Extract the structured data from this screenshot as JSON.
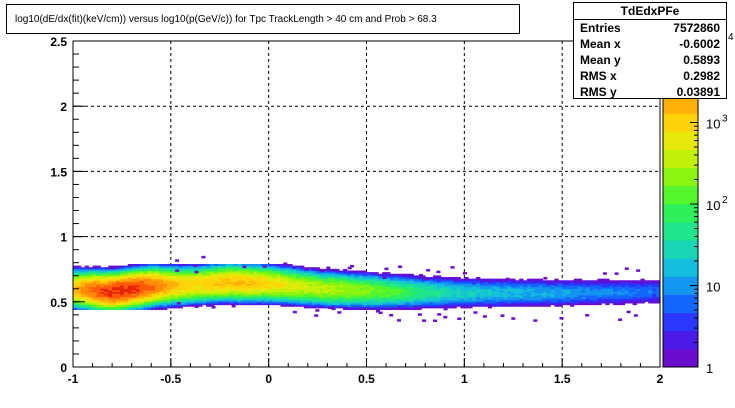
{
  "title": "log10(dE/dx(fit)(keV/cm)) versus log10(p(GeV/c)) for Tpc TrackLength > 40 cm and Prob > 68.3",
  "stats": {
    "name": "TdEdxPFe",
    "rows": [
      {
        "label": "Entries",
        "value": "7572860"
      },
      {
        "label": "Mean x",
        "value": "-0.6002"
      },
      {
        "label": "Mean y",
        "value": "0.5893"
      },
      {
        "label": "RMS x",
        "value": "0.2982"
      },
      {
        "label": "RMS y",
        "value": "0.03891"
      }
    ]
  },
  "chart_data": {
    "type": "heatmap",
    "title": "log10(dE/dx(fit)(keV/cm)) versus log10(p(GeV/c)) for Tpc TrackLength > 40 cm and Prob > 68.3",
    "xlim": [
      -1,
      2
    ],
    "ylim": [
      0,
      2.5
    ],
    "x_ticks": [
      {
        "value": -1,
        "label": "-1"
      },
      {
        "value": -0.5,
        "label": "-0.5"
      },
      {
        "value": 0,
        "label": "0"
      },
      {
        "value": 0.5,
        "label": "0.5"
      },
      {
        "value": 1,
        "label": "1"
      },
      {
        "value": 1.5,
        "label": "1.5"
      },
      {
        "value": 2,
        "label": "2"
      }
    ],
    "y_ticks": [
      {
        "value": 0,
        "label": "0"
      },
      {
        "value": 0.5,
        "label": "0.5"
      },
      {
        "value": 1,
        "label": "1"
      },
      {
        "value": 1.5,
        "label": "1.5"
      },
      {
        "value": 2,
        "label": "2"
      },
      {
        "value": 2.5,
        "label": "2.5"
      }
    ],
    "grid": true,
    "z_scale": "log",
    "z_range": [
      1,
      10000
    ],
    "z_ticks": [
      {
        "value": 1,
        "label": "1"
      },
      {
        "value": 10,
        "label": "10"
      },
      {
        "value": 100,
        "label": "10",
        "exp": "2"
      },
      {
        "value": 1000,
        "label": "10",
        "exp": "3"
      },
      {
        "value": 10000,
        "label": "",
        "exp": "4"
      }
    ],
    "palette": [
      "#6a0dcc",
      "#4b1ae6",
      "#2a37ff",
      "#1466ff",
      "#1296f0",
      "#14bedc",
      "#17d6b4",
      "#1ee68c",
      "#2ef05a",
      "#55f52d",
      "#8cf50f",
      "#c2f20a",
      "#e8e80a",
      "#ffd20a",
      "#ffb00a",
      "#ff8a0a",
      "#ff5a0a",
      "#e8230a"
    ],
    "band": {
      "center": [
        {
          "x": -1.0,
          "y": 0.6
        },
        {
          "x": -0.8,
          "y": 0.58
        },
        {
          "x": -0.6,
          "y": 0.62
        },
        {
          "x": -0.4,
          "y": 0.63
        },
        {
          "x": -0.2,
          "y": 0.65
        },
        {
          "x": 0.0,
          "y": 0.64
        },
        {
          "x": 0.3,
          "y": 0.6
        },
        {
          "x": 0.6,
          "y": 0.58
        },
        {
          "x": 1.0,
          "y": 0.57
        },
        {
          "x": 1.5,
          "y": 0.57
        },
        {
          "x": 2.0,
          "y": 0.58
        }
      ],
      "peak": {
        "x": -0.78,
        "y": 0.56,
        "counts": 8000
      }
    }
  }
}
